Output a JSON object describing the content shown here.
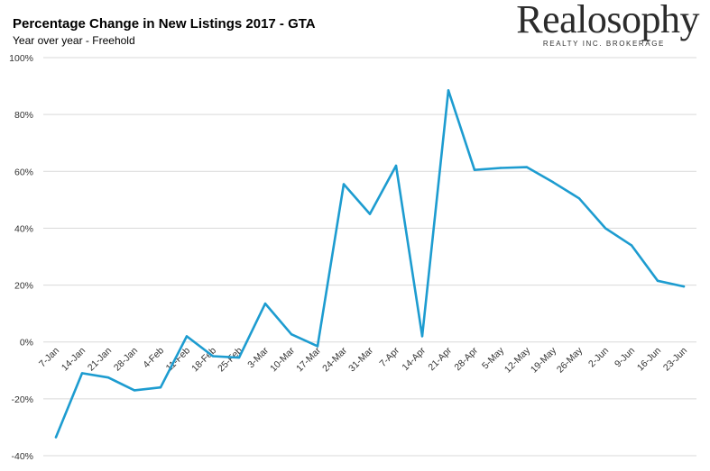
{
  "header": {
    "title": "Percentage Change in New Listings 2017 - GTA",
    "subtitle": "Year over year - Freehold"
  },
  "brand": {
    "name": "Realosophy",
    "tagline": "REALTY INC. BROKERAGE"
  },
  "chart_data": {
    "type": "line",
    "title": "Percentage Change in New Listings 2017 - GTA",
    "subtitle": "Year over year - Freehold",
    "xlabel": "",
    "ylabel": "",
    "ylim": [
      -40,
      100
    ],
    "yticks": [
      "-40%",
      "-20%",
      "0%",
      "20%",
      "40%",
      "60%",
      "80%",
      "100%"
    ],
    "grid": "horizontal",
    "line_color": "#1d9cd0",
    "categories": [
      "7-Jan",
      "14-Jan",
      "21-Jan",
      "28-Jan",
      "4-Feb",
      "11-Feb",
      "18-Feb",
      "25-Feb",
      "3-Mar",
      "10-Mar",
      "17-Mar",
      "24-Mar",
      "31-Mar",
      "7-Apr",
      "14-Apr",
      "21-Apr",
      "28-Apr",
      "5-May",
      "12-May",
      "19-May",
      "26-May",
      "2-Jun",
      "9-Jun",
      "16-Jun",
      "23-Jun"
    ],
    "values": [
      -33.5,
      -11,
      -12.5,
      -17,
      -16,
      2,
      -5,
      -5.5,
      13.5,
      2.7,
      -1.5,
      55.5,
      45,
      62,
      2,
      88.5,
      60.5,
      61.2,
      61.5,
      56.2,
      50.5,
      40,
      34,
      21.5,
      19.5
    ]
  }
}
